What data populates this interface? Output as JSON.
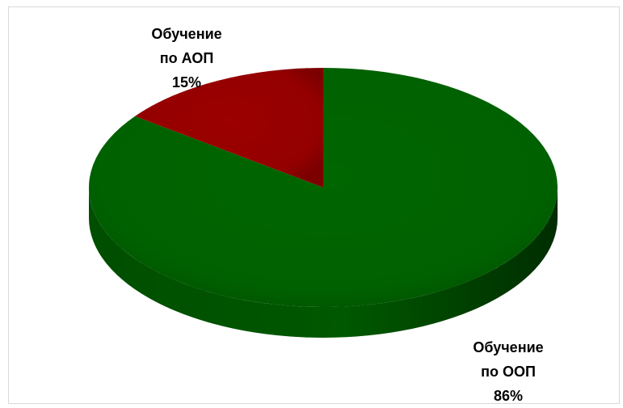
{
  "chart_data": {
    "type": "pie",
    "title": "",
    "slices": [
      {
        "name_lines": [
          "Обучение",
          "по ООП"
        ],
        "value": 86,
        "value_label": "86%",
        "color": "#006400"
      },
      {
        "name_lines": [
          "Обучение",
          "по АОП"
        ],
        "value": 15,
        "value_label": "15%",
        "color": "#990000"
      }
    ],
    "legend": "none",
    "style": "3d"
  }
}
